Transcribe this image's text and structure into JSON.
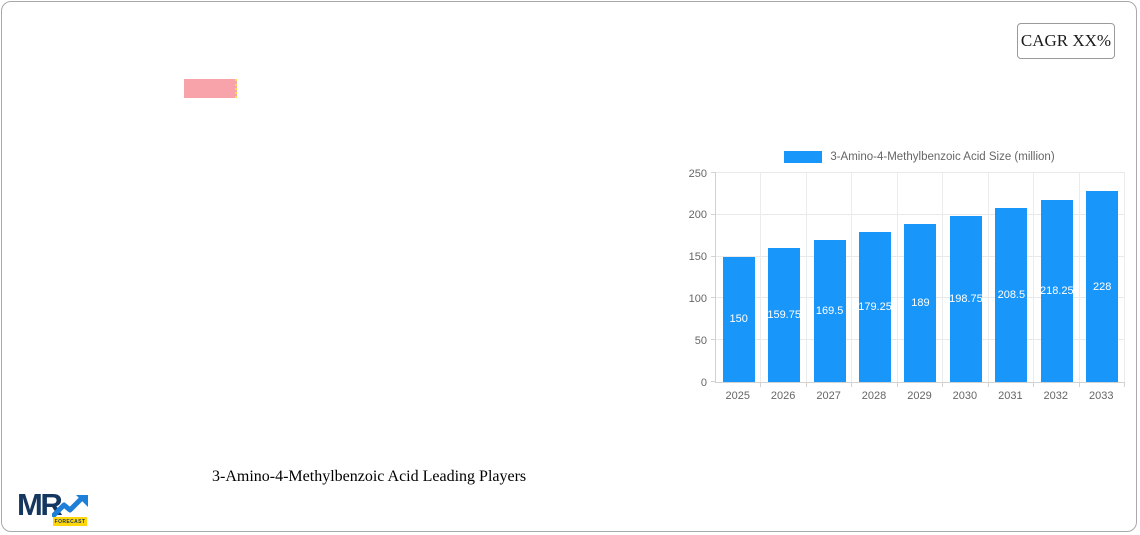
{
  "page": {
    "background": "#ffffff",
    "border_color": "#a9a9a9"
  },
  "cagr_badge": {
    "label": "CAGR XX%"
  },
  "placeholder_bar": {
    "color": "#f8a3aa"
  },
  "section_title": {
    "text": "3-Amino-4-Methylbenzoic Acid Leading Players"
  },
  "logo": {
    "text": "MR",
    "badge_label": "FORECAST",
    "text_color": "#14365f",
    "arrow_color": "#1d7fd8",
    "badge_color": "#ffd60a"
  },
  "chart_data": {
    "type": "bar",
    "title": "",
    "legend": "3-Amino-4-Methylbenzoic Acid Size (million)",
    "legend_position": "top",
    "categories": [
      "2025",
      "2026",
      "2027",
      "2028",
      "2029",
      "2030",
      "2031",
      "2032",
      "2033"
    ],
    "values": [
      150,
      159.75,
      169.5,
      179.25,
      189,
      198.75,
      208.5,
      218.25,
      228
    ],
    "value_labels": [
      "150",
      "159.75",
      "169.5",
      "179.25",
      "189",
      "198.75",
      "208.5",
      "218.25",
      "228"
    ],
    "ylim": [
      0,
      250
    ],
    "yticks": [
      0,
      50,
      100,
      150,
      200,
      250
    ],
    "grid": true,
    "bar_color": "#1996fa",
    "value_label_color": "#ffffff",
    "axis_text_color": "#666666"
  }
}
